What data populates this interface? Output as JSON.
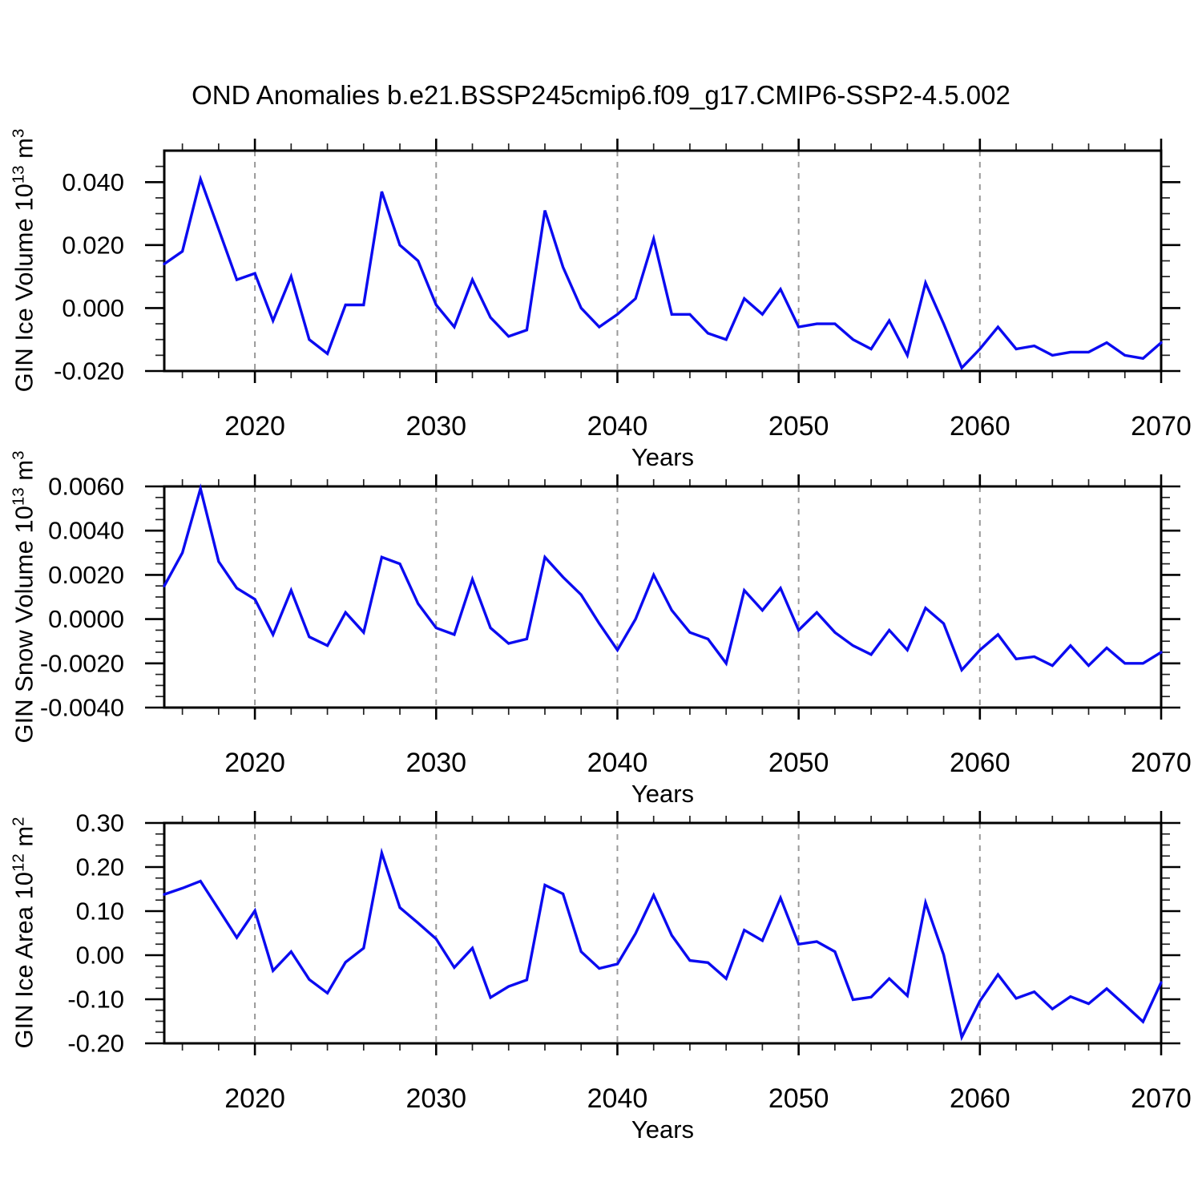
{
  "title": "OND Anomalies b.e21.BSSP245cmip6.f09_g17.CMIP6-SSP2-4.5.002",
  "chart_data": {
    "type": "line",
    "x_label": "Years",
    "xlim": [
      2015,
      2070
    ],
    "x_ticks": [
      2020,
      2030,
      2040,
      2050,
      2060,
      2070
    ],
    "x_minor_tick_step": 2,
    "gridline_years": [
      2020,
      2030,
      2040,
      2050,
      2060
    ],
    "line_color": "#0b0bf0",
    "grid_color": "#999999",
    "years": [
      2015,
      2016,
      2017,
      2018,
      2019,
      2020,
      2021,
      2022,
      2023,
      2024,
      2025,
      2026,
      2027,
      2028,
      2029,
      2030,
      2031,
      2032,
      2033,
      2034,
      2035,
      2036,
      2037,
      2038,
      2039,
      2040,
      2041,
      2042,
      2043,
      2044,
      2045,
      2046,
      2047,
      2048,
      2049,
      2050,
      2051,
      2052,
      2053,
      2054,
      2055,
      2056,
      2057,
      2058,
      2059,
      2060,
      2061,
      2062,
      2063,
      2064,
      2065,
      2066,
      2067,
      2068,
      2069,
      2070
    ],
    "panels": [
      {
        "id": "ice-volume",
        "ylabel": {
          "prefix": "GIN Ice Volume 10",
          "exp": "13",
          "unit": " m",
          "unit_exp": "3"
        },
        "ylim": [
          -0.02,
          0.05
        ],
        "y_ticks": [
          0.04,
          0.02,
          0.0,
          -0.02
        ],
        "y_tick_labels": [
          "0.040",
          "0.020",
          "0.000",
          "-0.020"
        ],
        "y_minor_step": 0.005,
        "values": [
          0.014,
          0.018,
          0.041,
          0.025,
          0.009,
          0.011,
          -0.004,
          0.01,
          -0.01,
          -0.0145,
          0.001,
          0.001,
          0.037,
          0.02,
          0.015,
          0.001,
          -0.006,
          0.009,
          -0.003,
          -0.009,
          -0.007,
          0.031,
          0.013,
          0.0,
          -0.006,
          -0.002,
          0.003,
          0.022,
          -0.002,
          -0.002,
          -0.008,
          -0.01,
          0.003,
          -0.002,
          0.006,
          -0.006,
          -0.005,
          -0.005,
          -0.01,
          -0.013,
          -0.004,
          -0.015,
          0.008,
          -0.005,
          -0.019,
          -0.013,
          -0.006,
          -0.013,
          -0.012,
          -0.015,
          -0.014,
          -0.014,
          -0.011,
          -0.015,
          -0.016,
          -0.011
        ]
      },
      {
        "id": "snow-volume",
        "ylabel": {
          "prefix": "GIN Snow Volume 10",
          "exp": "13",
          "unit": " m",
          "unit_exp": "3"
        },
        "ylim": [
          -0.004,
          0.006
        ],
        "y_ticks": [
          0.006,
          0.004,
          0.002,
          0.0,
          -0.002,
          -0.004
        ],
        "y_tick_labels": [
          "0.0060",
          "0.0040",
          "0.0020",
          "0.0000",
          "-0.0020",
          "-0.0040"
        ],
        "y_minor_step": 0.0005,
        "values": [
          0.0015,
          0.003,
          0.0059,
          0.0026,
          0.0014,
          0.0009,
          -0.0007,
          0.0013,
          -0.0008,
          -0.0012,
          0.0003,
          -0.0006,
          0.0028,
          0.0025,
          0.0007,
          -0.0004,
          -0.0007,
          0.0018,
          -0.0004,
          -0.0011,
          -0.0009,
          0.0028,
          0.0019,
          0.0011,
          -0.0002,
          -0.0014,
          0.0,
          0.002,
          0.0004,
          -0.0006,
          -0.0009,
          -0.002,
          0.0013,
          0.0004,
          0.0014,
          -0.0005,
          0.0003,
          -0.0006,
          -0.0012,
          -0.0016,
          -0.0005,
          -0.0014,
          0.0005,
          -0.0002,
          -0.0023,
          -0.0014,
          -0.0007,
          -0.0018,
          -0.0017,
          -0.0021,
          -0.0012,
          -0.0021,
          -0.0013,
          -0.002,
          -0.002,
          -0.0015
        ]
      },
      {
        "id": "ice-area",
        "ylabel": {
          "prefix": "GIN Ice Area 10",
          "exp": "12",
          "unit": " m",
          "unit_exp": "2"
        },
        "ylim": [
          -0.2,
          0.3
        ],
        "y_ticks": [
          0.3,
          0.2,
          0.1,
          0.0,
          -0.1,
          -0.2
        ],
        "y_tick_labels": [
          "0.30",
          "0.20",
          "0.10",
          "0.00",
          "-0.10",
          "-0.20"
        ],
        "y_minor_step": 0.025,
        "values": [
          0.138,
          0.152,
          0.168,
          0.104,
          0.04,
          0.101,
          -0.035,
          0.008,
          -0.055,
          -0.086,
          -0.016,
          0.016,
          0.232,
          0.108,
          0.073,
          0.037,
          -0.028,
          0.016,
          -0.096,
          -0.071,
          -0.056,
          0.159,
          0.139,
          0.008,
          -0.03,
          -0.02,
          0.049,
          0.136,
          0.045,
          -0.012,
          -0.017,
          -0.053,
          0.057,
          0.033,
          0.13,
          0.025,
          0.031,
          0.008,
          -0.101,
          -0.095,
          -0.053,
          -0.092,
          0.119,
          0.001,
          -0.186,
          -0.104,
          -0.044,
          -0.098,
          -0.083,
          -0.122,
          -0.094,
          -0.11,
          -0.076,
          -0.113,
          -0.151,
          -0.062
        ]
      }
    ]
  }
}
